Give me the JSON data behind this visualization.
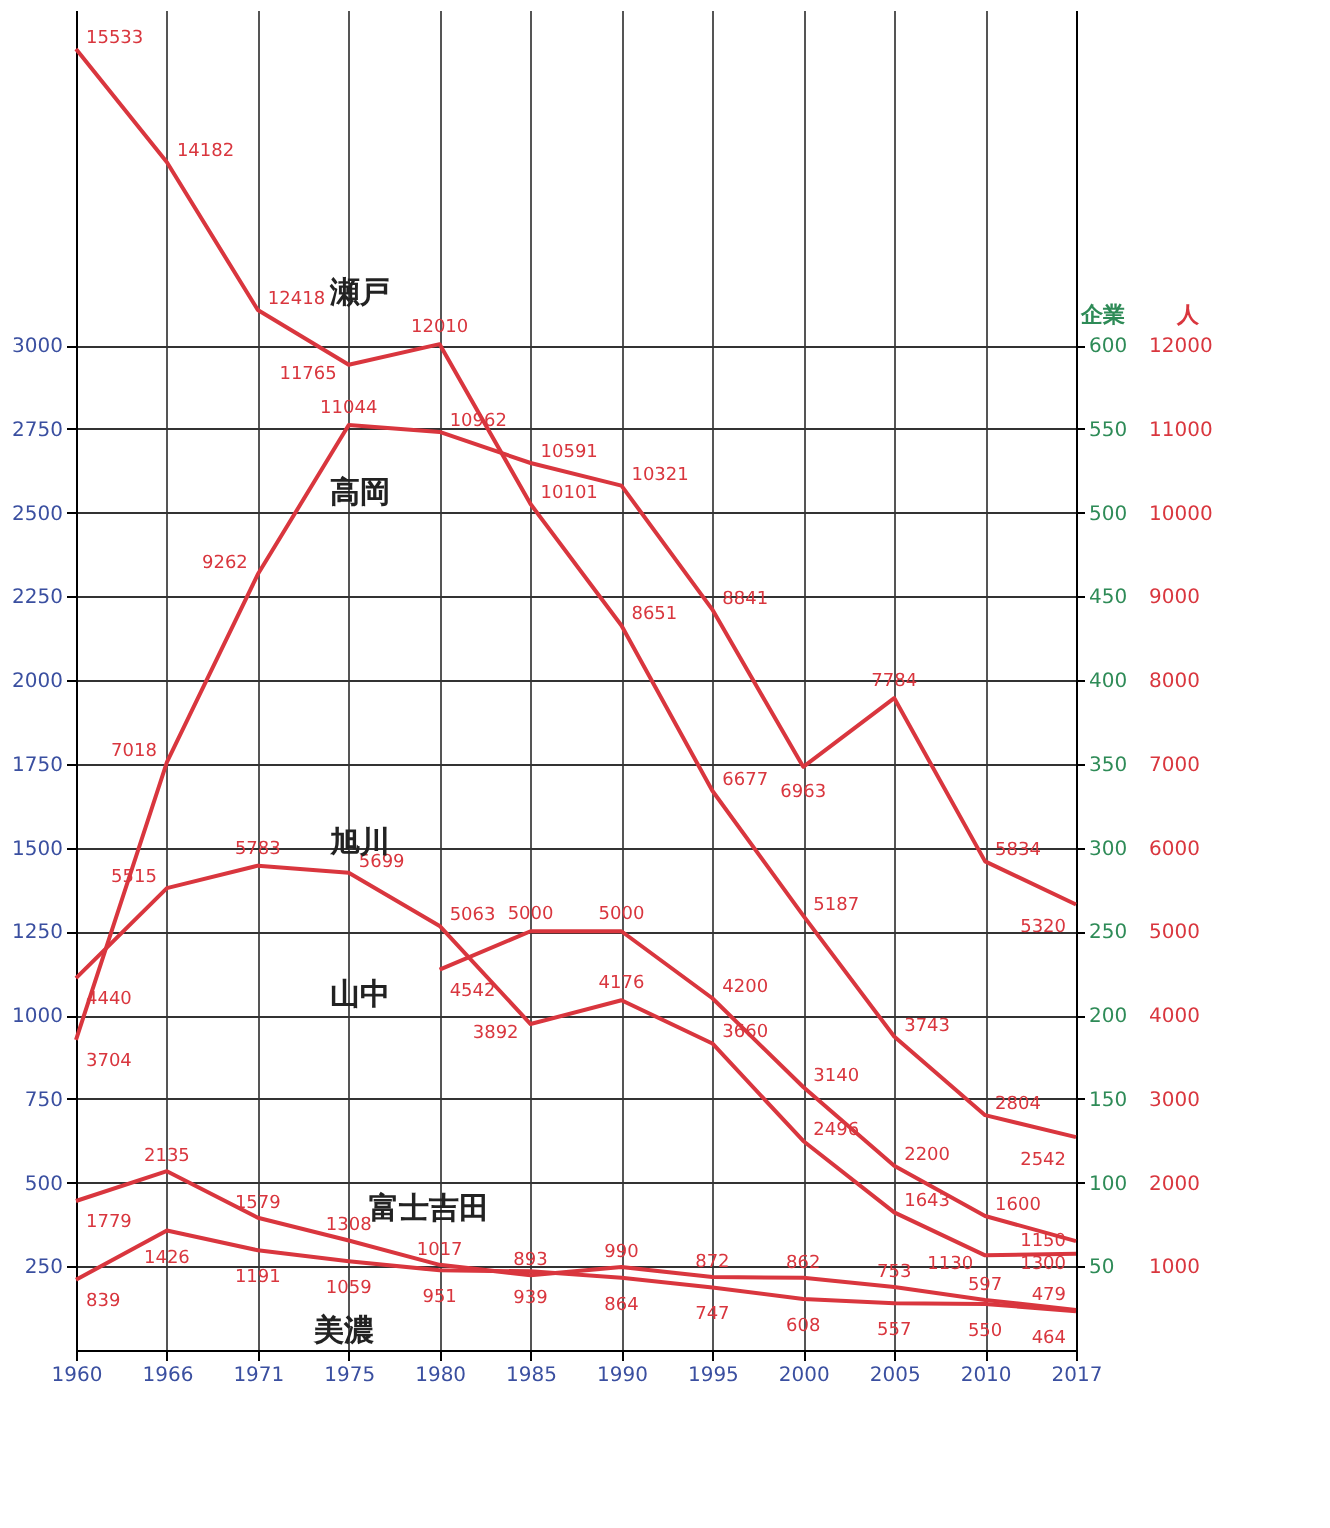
{
  "chart_data": {
    "type": "line",
    "categories": [
      "1960",
      "1966",
      "1971",
      "1975",
      "1980",
      "1985",
      "1990",
      "1995",
      "2000",
      "2005",
      "2010",
      "2017"
    ],
    "series": [
      {
        "name": "瀬戸",
        "color": "#d9363e",
        "values": [
          15533,
          14182,
          12418,
          11765,
          12010,
          10101,
          8651,
          6677,
          5187,
          3743,
          2804,
          2542
        ]
      },
      {
        "name": "高岡",
        "color": "#d9363e",
        "values": [
          3704,
          7018,
          9262,
          11044,
          10962,
          10591,
          10321,
          8841,
          6963,
          7784,
          5834,
          5320
        ]
      },
      {
        "name": "旭川",
        "color": "#d9363e",
        "values": [
          4440,
          5515,
          5783,
          5699,
          5063,
          3892,
          4176,
          3660,
          2496,
          1643,
          1130,
          1150
        ]
      },
      {
        "name": "山中",
        "color": "#d9363e",
        "values": [
          null,
          null,
          null,
          null,
          4542,
          5000,
          5000,
          4200,
          3140,
          2200,
          1600,
          1300
        ]
      },
      {
        "name": "富士吉田",
        "color": "#d9363e",
        "values": [
          1779,
          2135,
          1579,
          1308,
          1017,
          893,
          990,
          872,
          862,
          753,
          597,
          479
        ]
      },
      {
        "name": "美濃",
        "color": "#d9363e",
        "values": [
          839,
          1426,
          1191,
          1059,
          951,
          939,
          864,
          747,
          608,
          557,
          550,
          464
        ]
      }
    ],
    "ylabel": "人",
    "ylim": [
      0,
      16000
    ],
    "yticks": [
      1000,
      2000,
      3000,
      4000,
      5000,
      6000,
      7000,
      8000,
      9000,
      10000,
      11000,
      12000
    ],
    "y2label": "企業",
    "y2lim": [
      0,
      800
    ],
    "y2ticks": [
      50,
      100,
      150,
      200,
      250,
      300,
      350,
      400,
      450,
      500,
      550,
      600
    ],
    "y3lim": [
      0,
      4000
    ],
    "y3ticks": [
      250,
      500,
      750,
      1000,
      1250,
      1500,
      1750,
      2000,
      2250,
      2500,
      2750,
      3000
    ],
    "data_labels": true,
    "grid": true,
    "legend": false,
    "marker": "none",
    "line_style": "solid"
  }
}
